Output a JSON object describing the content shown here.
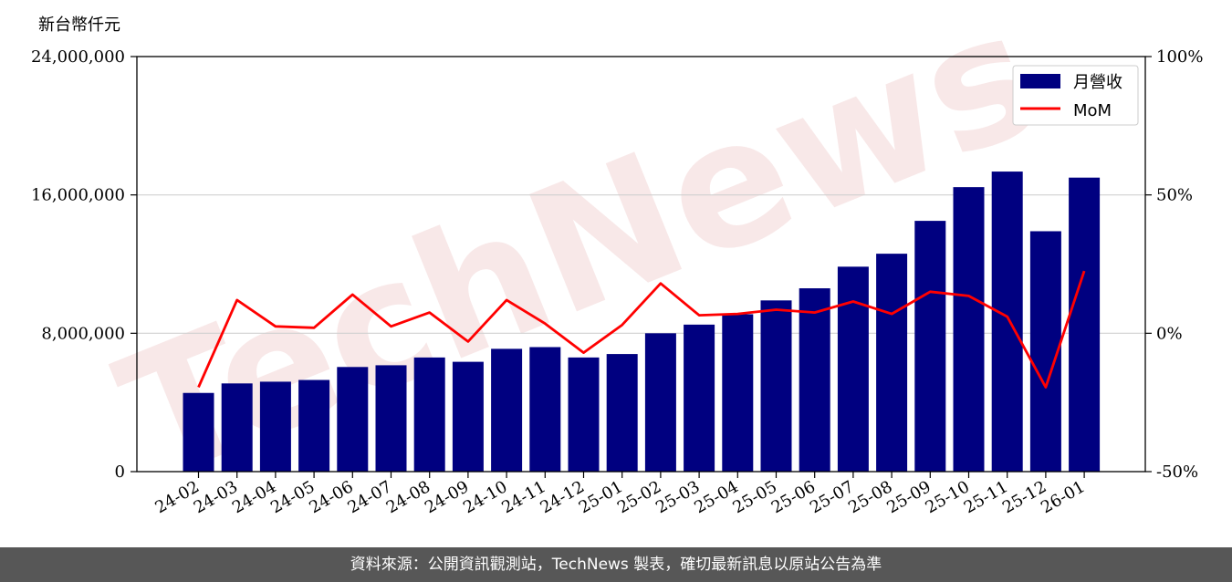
{
  "watermark": "TechNews",
  "footer_text": "資料來源：公開資訊觀測站，TechNews 製表，確切最新訊息以原站公告為準",
  "colors": {
    "bar": "#000080",
    "line": "#ff0000",
    "grid": "#d0d0d0",
    "footer_bg": "#575757"
  },
  "chart_data": {
    "type": "bar",
    "y_unit_label": "新台幣仟元",
    "categories": [
      "24-02",
      "24-03",
      "24-04",
      "24-05",
      "24-06",
      "24-07",
      "24-08",
      "24-09",
      "24-10",
      "24-11",
      "24-12",
      "25-01",
      "25-02",
      "25-03",
      "25-04",
      "25-05",
      "25-06",
      "25-07",
      "25-08",
      "25-09",
      "25-10",
      "25-11",
      "25-12",
      "26-01"
    ],
    "series": [
      {
        "name": "月營收",
        "type": "bar",
        "axis": "left",
        "values": [
          4550000,
          5100000,
          5200000,
          5300000,
          6050000,
          6150000,
          6600000,
          6350000,
          7100000,
          7200000,
          6600000,
          6800000,
          8000000,
          8500000,
          9100000,
          9900000,
          10600000,
          11850000,
          12600000,
          14500000,
          16450000,
          17350000,
          13900000,
          17000000
        ]
      },
      {
        "name": "MoM",
        "type": "line",
        "axis": "right",
        "values": [
          -19.5,
          12,
          2.5,
          2,
          14,
          2.5,
          7.5,
          -3,
          12,
          3.5,
          -7,
          3,
          18,
          6.5,
          7,
          8.5,
          7.5,
          11.5,
          7,
          15,
          13.5,
          6,
          -19.5,
          22.5
        ]
      }
    ],
    "ylim_left": [
      0,
      24000000
    ],
    "yticks_left": [
      "0",
      "8,000,000",
      "16,000,000",
      "24,000,000"
    ],
    "ylim_right": [
      -50,
      100
    ],
    "yticks_right": [
      "-50%",
      "0%",
      "50%",
      "100%"
    ],
    "grid": "horizontal",
    "legend_position": "top-right"
  }
}
